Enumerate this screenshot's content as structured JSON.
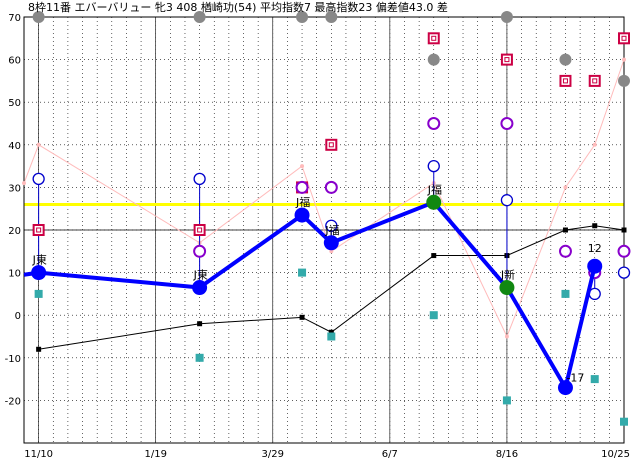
{
  "chart_data": {
    "type": "line",
    "title": "8枠11番 エバーバリュー 牝3 408 楢崎功(54) 平均指数7 最高指数23 偏差値43.0 差",
    "xlabel": "",
    "ylabel": "",
    "ylim": [
      -30,
      70
    ],
    "y_ticks": [
      70,
      60,
      50,
      40,
      30,
      20,
      10,
      0,
      -10,
      -20
    ],
    "x_ticks": [
      "11/10",
      "1/19",
      "3/29",
      "6/7",
      "8/16",
      "10/25"
    ],
    "x_tick_index": [
      1,
      9,
      17,
      25,
      33,
      41
    ],
    "x_count": 42,
    "grid": true,
    "reference_line": {
      "value": 26,
      "color": "#ffff00"
    },
    "colors": {
      "main": "#0000ff",
      "thin_black": "#000000",
      "pink": "#ffbbbb",
      "gray": "#888888",
      "red_square": "#cc0044",
      "purple_circle": "#8800cc",
      "blue_circle": "#0000cc",
      "teal_square": "#33aaaa",
      "green": "#118811"
    },
    "series": [
      {
        "values": [
          [
            0,
            9.5
          ],
          [
            1,
            10
          ],
          [
            12,
            6.5
          ],
          [
            19,
            23.5
          ],
          [
            21,
            17
          ],
          [
            28,
            26.5
          ],
          [
            33,
            6.5
          ],
          [
            37,
            -17
          ],
          [
            39,
            11.5
          ]
        ]
      },
      {
        "values": [
          [
            1,
            -8
          ],
          [
            12,
            -2
          ],
          [
            19,
            -0.5
          ],
          [
            21,
            -4
          ],
          [
            28,
            14
          ],
          [
            33,
            14
          ],
          [
            37,
            20
          ],
          [
            39,
            21
          ],
          [
            41,
            20
          ]
        ]
      },
      {
        "values": [
          [
            0,
            31
          ],
          [
            1,
            40
          ],
          [
            12,
            17
          ],
          [
            19,
            35
          ],
          [
            21,
            15
          ],
          [
            28,
            31
          ],
          [
            33,
            -5
          ],
          [
            37,
            30
          ],
          [
            39,
            40
          ],
          [
            41,
            60
          ]
        ]
      },
      {
        "values": [
          [
            1,
            70
          ],
          [
            12,
            70
          ],
          [
            19,
            70
          ],
          [
            21,
            70
          ],
          [
            28,
            60
          ],
          [
            33,
            70
          ],
          [
            37,
            60
          ],
          [
            41,
            55
          ]
        ]
      },
      {
        "values": [
          [
            1,
            20
          ],
          [
            12,
            20
          ],
          [
            19,
            30
          ],
          [
            21,
            40
          ],
          [
            28,
            65
          ],
          [
            33,
            60
          ],
          [
            37,
            55
          ],
          [
            39,
            55
          ],
          [
            41,
            65
          ]
        ]
      },
      {
        "values": [
          [
            1,
            10
          ],
          [
            12,
            15
          ],
          [
            19,
            30
          ],
          [
            21,
            30
          ],
          [
            28,
            45
          ],
          [
            33,
            45
          ],
          [
            37,
            15
          ],
          [
            39,
            10
          ],
          [
            41,
            15
          ]
        ]
      },
      {
        "values": [
          [
            1,
            32
          ],
          [
            12,
            32
          ],
          [
            21,
            21
          ],
          [
            28,
            35
          ],
          [
            33,
            27
          ],
          [
            39,
            5
          ],
          [
            41,
            10
          ]
        ]
      },
      {
        "values": [
          [
            1,
            5
          ],
          [
            12,
            -10
          ],
          [
            19,
            10
          ],
          [
            21,
            -5
          ],
          [
            28,
            0
          ],
          [
            33,
            -20
          ],
          [
            37,
            5
          ],
          [
            39,
            -15
          ],
          [
            41,
            -25
          ]
        ]
      },
      {
        "values": [
          [
            28,
            26.5
          ],
          [
            33,
            6.5
          ]
        ]
      }
    ],
    "annotations": [
      {
        "label": "J東",
        "x": 1,
        "y": 10
      },
      {
        "label": "J東",
        "x": 12,
        "y": 6.5
      },
      {
        "label": "J福",
        "x": 19,
        "y": 23.5
      },
      {
        "label": "J福",
        "x": 21,
        "y": 17
      },
      {
        "label": "J福",
        "x": 28,
        "y": 26.5
      },
      {
        "label": "J新",
        "x": 33,
        "y": 6.5
      },
      {
        "label": "-17",
        "x": 37,
        "y": -17
      },
      {
        "label": "12",
        "x": 39,
        "y": 11.5
      }
    ]
  }
}
